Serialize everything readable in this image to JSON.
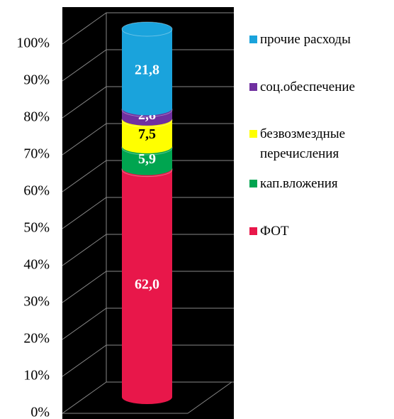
{
  "chart_data": {
    "type": "stacked_cylinder",
    "categories": [
      null
    ],
    "series": [
      {
        "name": "ФОТ",
        "color": "#e8174a",
        "label_color": "#ffffff",
        "values": [
          62.0
        ],
        "value_labels": [
          "62,0"
        ]
      },
      {
        "name": "кап.вложения",
        "color": "#00a550",
        "label_color": "#ffffff",
        "values": [
          5.9
        ],
        "value_labels": [
          "5,9"
        ]
      },
      {
        "name": "безвозмездные перечисления",
        "color": "#ffff00",
        "label_color": "#000000",
        "values": [
          7.5
        ],
        "value_labels": [
          "7,5"
        ]
      },
      {
        "name": "соц.обеспечение",
        "color": "#7030a0",
        "label_color": "#ffffff",
        "values": [
          2.8
        ],
        "value_labels": [
          "2,8"
        ]
      },
      {
        "name": "прочие расходы",
        "color": "#1aa3dc",
        "label_color": "#ffffff",
        "values": [
          21.8
        ],
        "value_labels": [
          "21,8"
        ]
      }
    ],
    "ylim": [
      0,
      100
    ],
    "yticks": [
      {
        "value": 0,
        "label": "0%"
      },
      {
        "value": 10,
        "label": "10%"
      },
      {
        "value": 20,
        "label": "20%"
      },
      {
        "value": 30,
        "label": "30%"
      },
      {
        "value": 40,
        "label": "40%"
      },
      {
        "value": 50,
        "label": "50%"
      },
      {
        "value": 60,
        "label": "60%"
      },
      {
        "value": 70,
        "label": "70%"
      },
      {
        "value": 80,
        "label": "80%"
      },
      {
        "value": 90,
        "label": "90%"
      },
      {
        "value": 100,
        "label": "100%"
      }
    ],
    "grid": true,
    "legend": "right"
  }
}
